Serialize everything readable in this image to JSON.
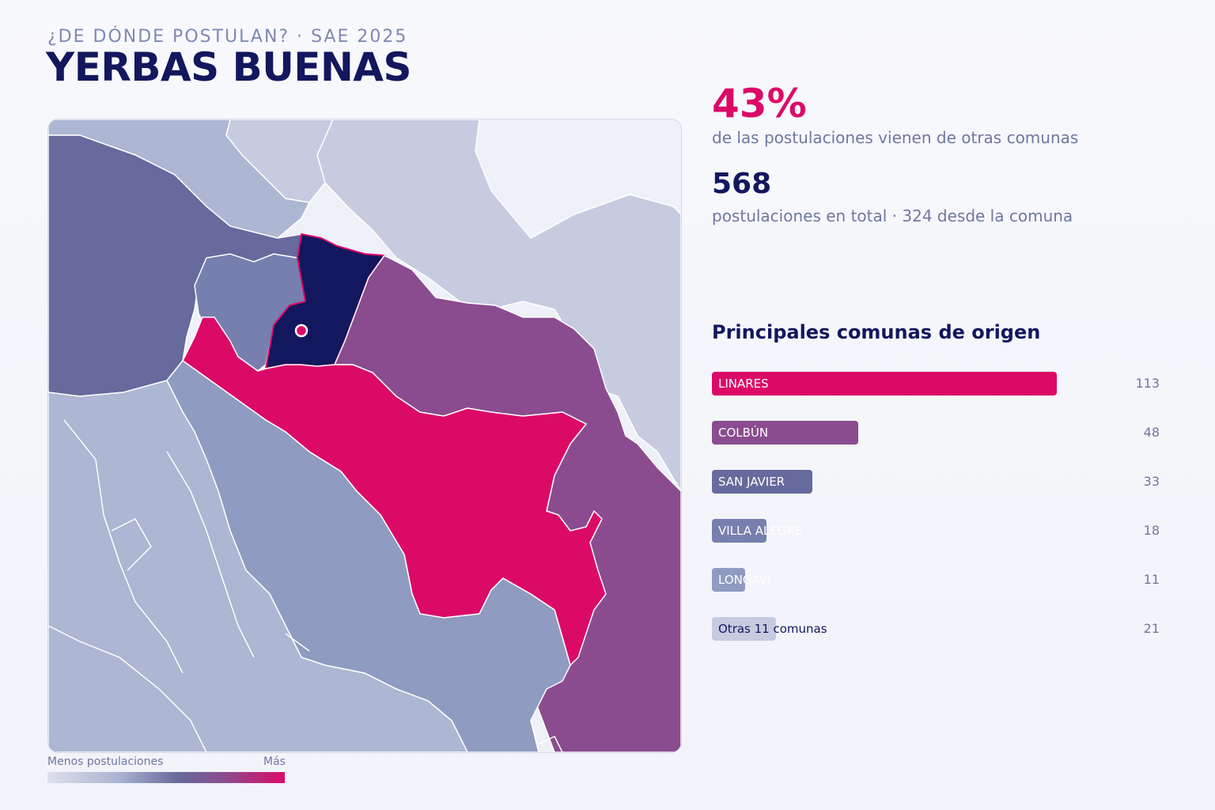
{
  "header": {
    "eyebrow": "¿DE DÓNDE POSTULAN? · SAE 2025",
    "title": "YERBAS BUENAS"
  },
  "stats": {
    "percent": "43%",
    "percent_text": "de las postulaciones vienen de otras comunas",
    "total": "568",
    "total_text": "postulaciones en total · 324 desde la comuna"
  },
  "ranking": {
    "title": "Principales comunas de origen",
    "max": 113,
    "items": [
      {
        "label": "LINARES",
        "value": "113",
        "num": 113,
        "color": "#dc0a67",
        "text_color": "#ffffff"
      },
      {
        "label": "COLBÚN",
        "value": "48",
        "num": 48,
        "color": "#8a4c8e",
        "text_color": "#ffffff"
      },
      {
        "label": "SAN JAVIER",
        "value": "33",
        "num": 33,
        "color": "#666a9c",
        "text_color": "#ffffff"
      },
      {
        "label": "VILLA ALEGRE",
        "value": "18",
        "num": 18,
        "color": "#767fae",
        "text_color": "#ffffff"
      },
      {
        "label": "LONGAVÍ",
        "value": "11",
        "num": 11,
        "color": "#8f9bc0",
        "text_color": "#ffffff"
      },
      {
        "label": "Otras 11 comunas",
        "value": "21",
        "num": 21,
        "color": "#c6cbe0",
        "text_color": "#12175e"
      }
    ]
  },
  "legend": {
    "low": "Menos postulaciones",
    "high": "Más"
  },
  "map_colors": {
    "selected": "#12175e",
    "linares": "#dc0a67",
    "colbun": "#8a4c8e",
    "san_javier": "#666a9c",
    "villa_alegre": "#767fae",
    "longavi": "#8f9bc0",
    "minor": "#adb6d2",
    "faint": "#c6cbdf",
    "background": "#eef1f8",
    "marker": "#dc0a67"
  }
}
